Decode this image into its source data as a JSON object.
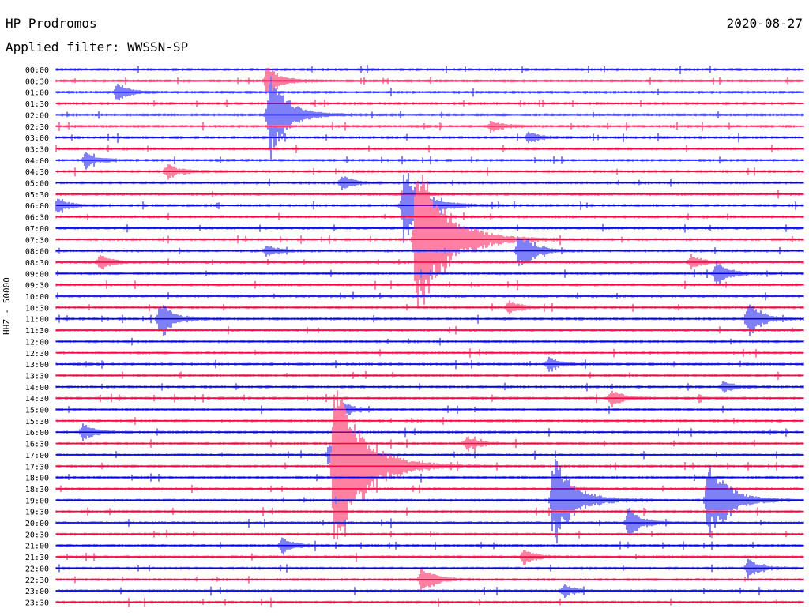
{
  "header": {
    "station": "HP Prodromos",
    "date": "2020-08-27",
    "filter_label": "Applied filter: WWSSN-SP",
    "channel": "HHZ - 50000"
  },
  "colors": {
    "odd_trace": "#0000ee",
    "even_trace": "#ff0040",
    "text": "#000000"
  },
  "chart_data": {
    "type": "line",
    "title": "HP Prodromos",
    "subtitle": "Applied filter: WWSSN-SP",
    "ylabel": "HHZ - 50000",
    "ytick_labels": [
      "00:00",
      "00:30",
      "01:00",
      "01:30",
      "02:00",
      "02:30",
      "03:00",
      "03:30",
      "04:00",
      "04:30",
      "05:00",
      "05:30",
      "06:00",
      "06:30",
      "07:00",
      "07:30",
      "08:00",
      "08:30",
      "09:00",
      "09:30",
      "10:00",
      "10:30",
      "11:00",
      "11:30",
      "12:00",
      "12:30",
      "13:00",
      "13:30",
      "14:00",
      "14:30",
      "15:00",
      "15:30",
      "16:00",
      "16:30",
      "17:00",
      "17:30",
      "18:00",
      "18:30",
      "19:00",
      "19:30",
      "20:00",
      "20:30",
      "21:00",
      "21:30",
      "22:00",
      "22:30",
      "23:00",
      "23:30"
    ],
    "trace_minutes": 30,
    "events": [
      {
        "row": 1,
        "minute": 8.5,
        "amp": 1.0
      },
      {
        "row": 2,
        "minute": 2.5,
        "amp": 0.6
      },
      {
        "row": 4,
        "minute": 8.6,
        "amp": 2.8
      },
      {
        "row": 5,
        "minute": 17.5,
        "amp": 0.4
      },
      {
        "row": 6,
        "minute": 19.0,
        "amp": 0.4
      },
      {
        "row": 8,
        "minute": 1.2,
        "amp": 0.5
      },
      {
        "row": 9,
        "minute": 4.5,
        "amp": 0.5
      },
      {
        "row": 10,
        "minute": 11.5,
        "amp": 0.5
      },
      {
        "row": 11,
        "minute": 14.0,
        "amp": 0.6
      },
      {
        "row": 12,
        "minute": 0.1,
        "amp": 0.5
      },
      {
        "row": 12,
        "minute": 14.0,
        "amp": 2.8
      },
      {
        "row": 15,
        "minute": 14.5,
        "amp": 6.0
      },
      {
        "row": 16,
        "minute": 8.5,
        "amp": 0.4
      },
      {
        "row": 16,
        "minute": 18.6,
        "amp": 1.3
      },
      {
        "row": 17,
        "minute": 1.8,
        "amp": 0.5
      },
      {
        "row": 17,
        "minute": 25.5,
        "amp": 0.5
      },
      {
        "row": 18,
        "minute": 26.5,
        "amp": 0.8
      },
      {
        "row": 21,
        "minute": 18.2,
        "amp": 0.5
      },
      {
        "row": 22,
        "minute": 4.2,
        "amp": 1.2
      },
      {
        "row": 22,
        "minute": 27.8,
        "amp": 1.2
      },
      {
        "row": 26,
        "minute": 19.8,
        "amp": 0.5
      },
      {
        "row": 28,
        "minute": 26.8,
        "amp": 0.4
      },
      {
        "row": 29,
        "minute": 22.3,
        "amp": 0.6
      },
      {
        "row": 30,
        "minute": 11.5,
        "amp": 0.5
      },
      {
        "row": 32,
        "minute": 1.1,
        "amp": 0.6
      },
      {
        "row": 33,
        "minute": 16.5,
        "amp": 0.5
      },
      {
        "row": 34,
        "minute": 11.0,
        "amp": 0.8
      },
      {
        "row": 35,
        "minute": 11.2,
        "amp": 6.0
      },
      {
        "row": 37,
        "minute": 20.2,
        "amp": 0.4
      },
      {
        "row": 38,
        "minute": 20.0,
        "amp": 3.2
      },
      {
        "row": 38,
        "minute": 26.2,
        "amp": 3.0
      },
      {
        "row": 40,
        "minute": 23.0,
        "amp": 1.0
      },
      {
        "row": 42,
        "minute": 9.1,
        "amp": 0.5
      },
      {
        "row": 43,
        "minute": 18.8,
        "amp": 0.5
      },
      {
        "row": 44,
        "minute": 27.8,
        "amp": 0.6
      },
      {
        "row": 45,
        "minute": 14.7,
        "amp": 0.9
      },
      {
        "row": 46,
        "minute": 20.4,
        "amp": 0.4
      }
    ]
  }
}
